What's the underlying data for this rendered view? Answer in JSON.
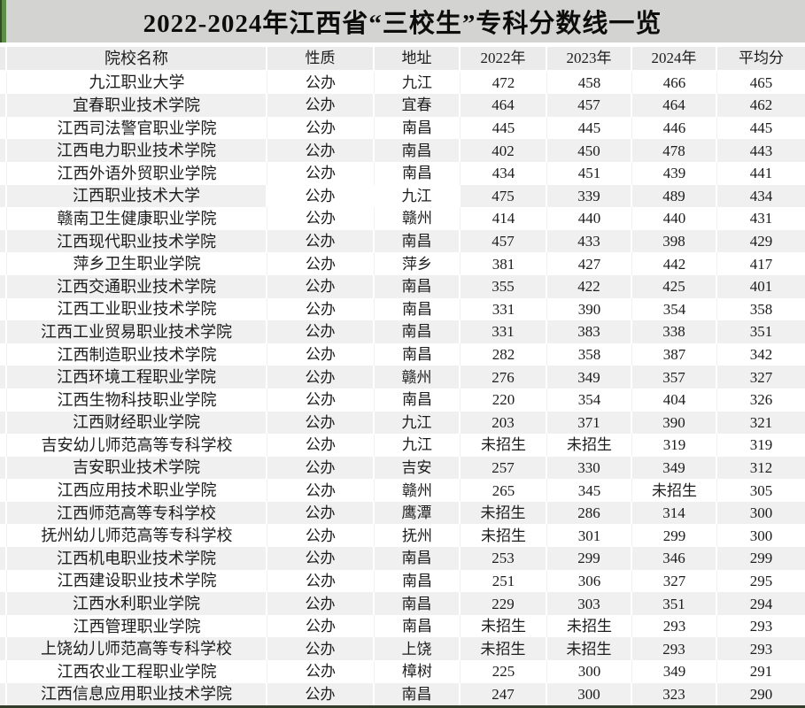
{
  "chart_data": {
    "type": "table",
    "title": "2022-2024年江西省“三校生”专科分数线一览",
    "columns": [
      "院校名称",
      "性质",
      "地址",
      "2022年",
      "2023年",
      "2024年",
      "平均分"
    ],
    "rows": [
      [
        "九江职业大学",
        "公办",
        "九江",
        "472",
        "458",
        "466",
        "465"
      ],
      [
        "宜春职业技术学院",
        "公办",
        "宜春",
        "464",
        "457",
        "464",
        "462"
      ],
      [
        "江西司法警官职业学院",
        "公办",
        "南昌",
        "445",
        "445",
        "446",
        "445"
      ],
      [
        "江西电力职业技术学院",
        "公办",
        "南昌",
        "402",
        "450",
        "478",
        "443"
      ],
      [
        "江西外语外贸职业学院",
        "公办",
        "南昌",
        "434",
        "451",
        "439",
        "441"
      ],
      [
        "江西职业技术大学",
        "公办",
        "九江",
        "475",
        "339",
        "489",
        "434"
      ],
      [
        "赣南卫生健康职业学院",
        "公办",
        "赣州",
        "414",
        "440",
        "440",
        "431"
      ],
      [
        "江西现代职业技术学院",
        "公办",
        "南昌",
        "457",
        "433",
        "398",
        "429"
      ],
      [
        "萍乡卫生职业学院",
        "公办",
        "萍乡",
        "381",
        "427",
        "442",
        "417"
      ],
      [
        "江西交通职业技术学院",
        "公办",
        "南昌",
        "355",
        "422",
        "425",
        "401"
      ],
      [
        "江西工业职业技术学院",
        "公办",
        "南昌",
        "331",
        "390",
        "354",
        "358"
      ],
      [
        "江西工业贸易职业技术学院",
        "公办",
        "南昌",
        "331",
        "383",
        "338",
        "351"
      ],
      [
        "江西制造职业技术学院",
        "公办",
        "南昌",
        "282",
        "358",
        "387",
        "342"
      ],
      [
        "江西环境工程职业学院",
        "公办",
        "赣州",
        "276",
        "349",
        "357",
        "327"
      ],
      [
        "江西生物科技职业学院",
        "公办",
        "南昌",
        "220",
        "354",
        "404",
        "326"
      ],
      [
        "江西财经职业学院",
        "公办",
        "九江",
        "203",
        "371",
        "390",
        "321"
      ],
      [
        "吉安幼儿师范高等专科学校",
        "公办",
        "九江",
        "未招生",
        "未招生",
        "319",
        "319"
      ],
      [
        "吉安职业技术学院",
        "公办",
        "吉安",
        "257",
        "330",
        "349",
        "312"
      ],
      [
        "江西应用技术职业学院",
        "公办",
        "赣州",
        "265",
        "345",
        "未招生",
        "305"
      ],
      [
        "江西师范高等专科学校",
        "公办",
        "鹰潭",
        "未招生",
        "286",
        "314",
        "300"
      ],
      [
        "抚州幼儿师范高等专科学校",
        "公办",
        "抚州",
        "未招生",
        "301",
        "299",
        "300"
      ],
      [
        "江西机电职业技术学院",
        "公办",
        "南昌",
        "253",
        "299",
        "346",
        "299"
      ],
      [
        "江西建设职业技术学院",
        "公办",
        "南昌",
        "251",
        "306",
        "327",
        "295"
      ],
      [
        "江西水利职业学院",
        "公办",
        "南昌",
        "229",
        "303",
        "351",
        "294"
      ],
      [
        "江西管理职业学院",
        "公办",
        "南昌",
        "未招生",
        "未招生",
        "293",
        "293"
      ],
      [
        "上饶幼儿师范高等专科学校",
        "公办",
        "上饶",
        "未招生",
        "未招生",
        "293",
        "293"
      ],
      [
        "江西农业工程职业学院",
        "公办",
        "樟树",
        "225",
        "300",
        "349",
        "291"
      ],
      [
        "江西信息应用职业技术学院",
        "公办",
        "南昌",
        "247",
        "300",
        "323",
        "290"
      ]
    ],
    "no_enrollment_label": "未招生",
    "layout": {
      "striped": true,
      "gray_rows": "even data rows (2nd, 4th, ...)",
      "legend": "none",
      "grid": "subtle white cell separators"
    }
  },
  "special_cells": {
    "white_bg": [
      {
        "row": 5,
        "cols": [
          1,
          2
        ]
      }
    ]
  },
  "colors": {
    "accent_green": "#5f8c49",
    "accent_green_dark": "#2e4f22",
    "titlebar_bg": "#d3d4d2",
    "header_row_bg": "#ebebeb",
    "stripe_row_bg": "#f0f0f0",
    "bottom_bar": "#333d2b",
    "text": "#1c1c1c"
  }
}
